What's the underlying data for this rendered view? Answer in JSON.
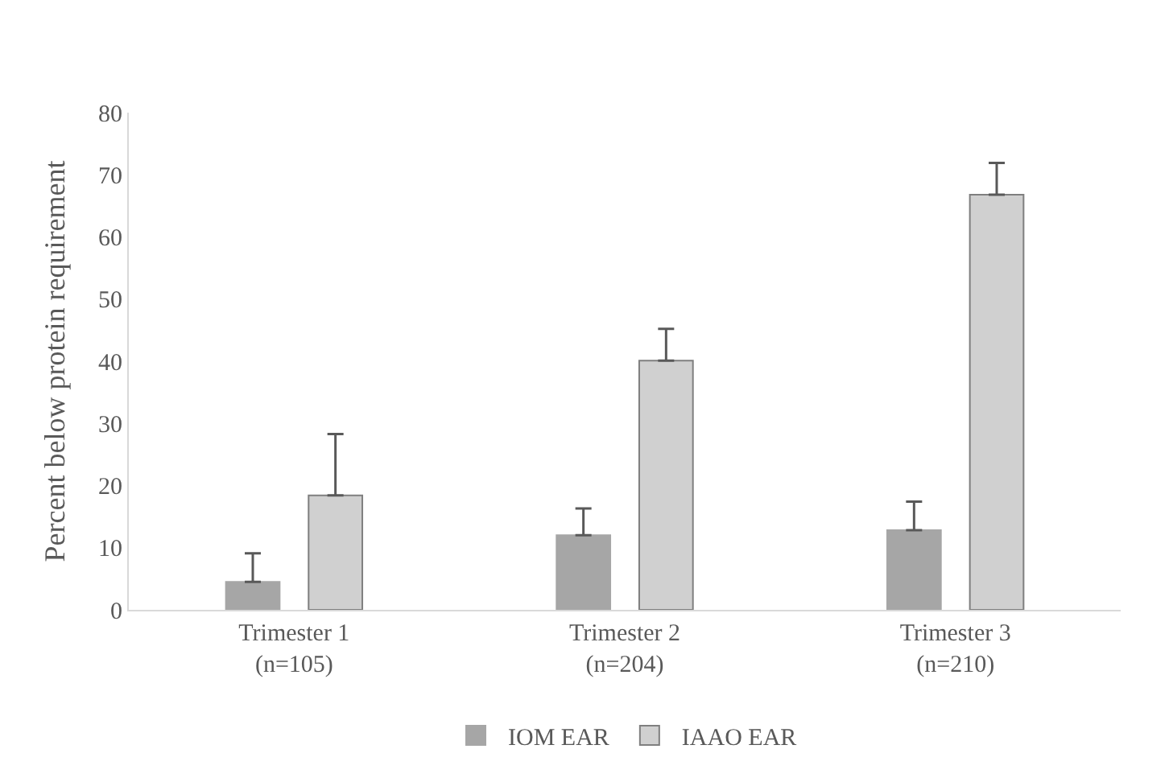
{
  "chart_data": {
    "type": "bar",
    "ylabel": "Percent below protein requirement",
    "categories": [
      "Trimester 1\n(n=105)",
      "Trimester 2\n(n=204)",
      "Trimester 3\n(n=210)"
    ],
    "series": [
      {
        "name": "IOM EAR",
        "color": "#a6a6a6",
        "values": [
          4.5,
          12.0,
          12.8
        ],
        "errors": [
          [
            4.5,
            9.1
          ],
          [
            12.0,
            16.3
          ],
          [
            12.8,
            17.4
          ]
        ]
      },
      {
        "name": "IAAO EAR",
        "color": "#d0d0d0",
        "values": [
          18.4,
          40.1,
          66.8
        ],
        "errors": [
          [
            18.4,
            28.3
          ],
          [
            40.1,
            45.2
          ],
          [
            66.8,
            71.9
          ]
        ]
      }
    ],
    "ylim": [
      0,
      80
    ],
    "yticks": [
      0,
      10,
      20,
      30,
      40,
      50,
      60,
      70,
      80
    ],
    "legend": "bottom"
  }
}
